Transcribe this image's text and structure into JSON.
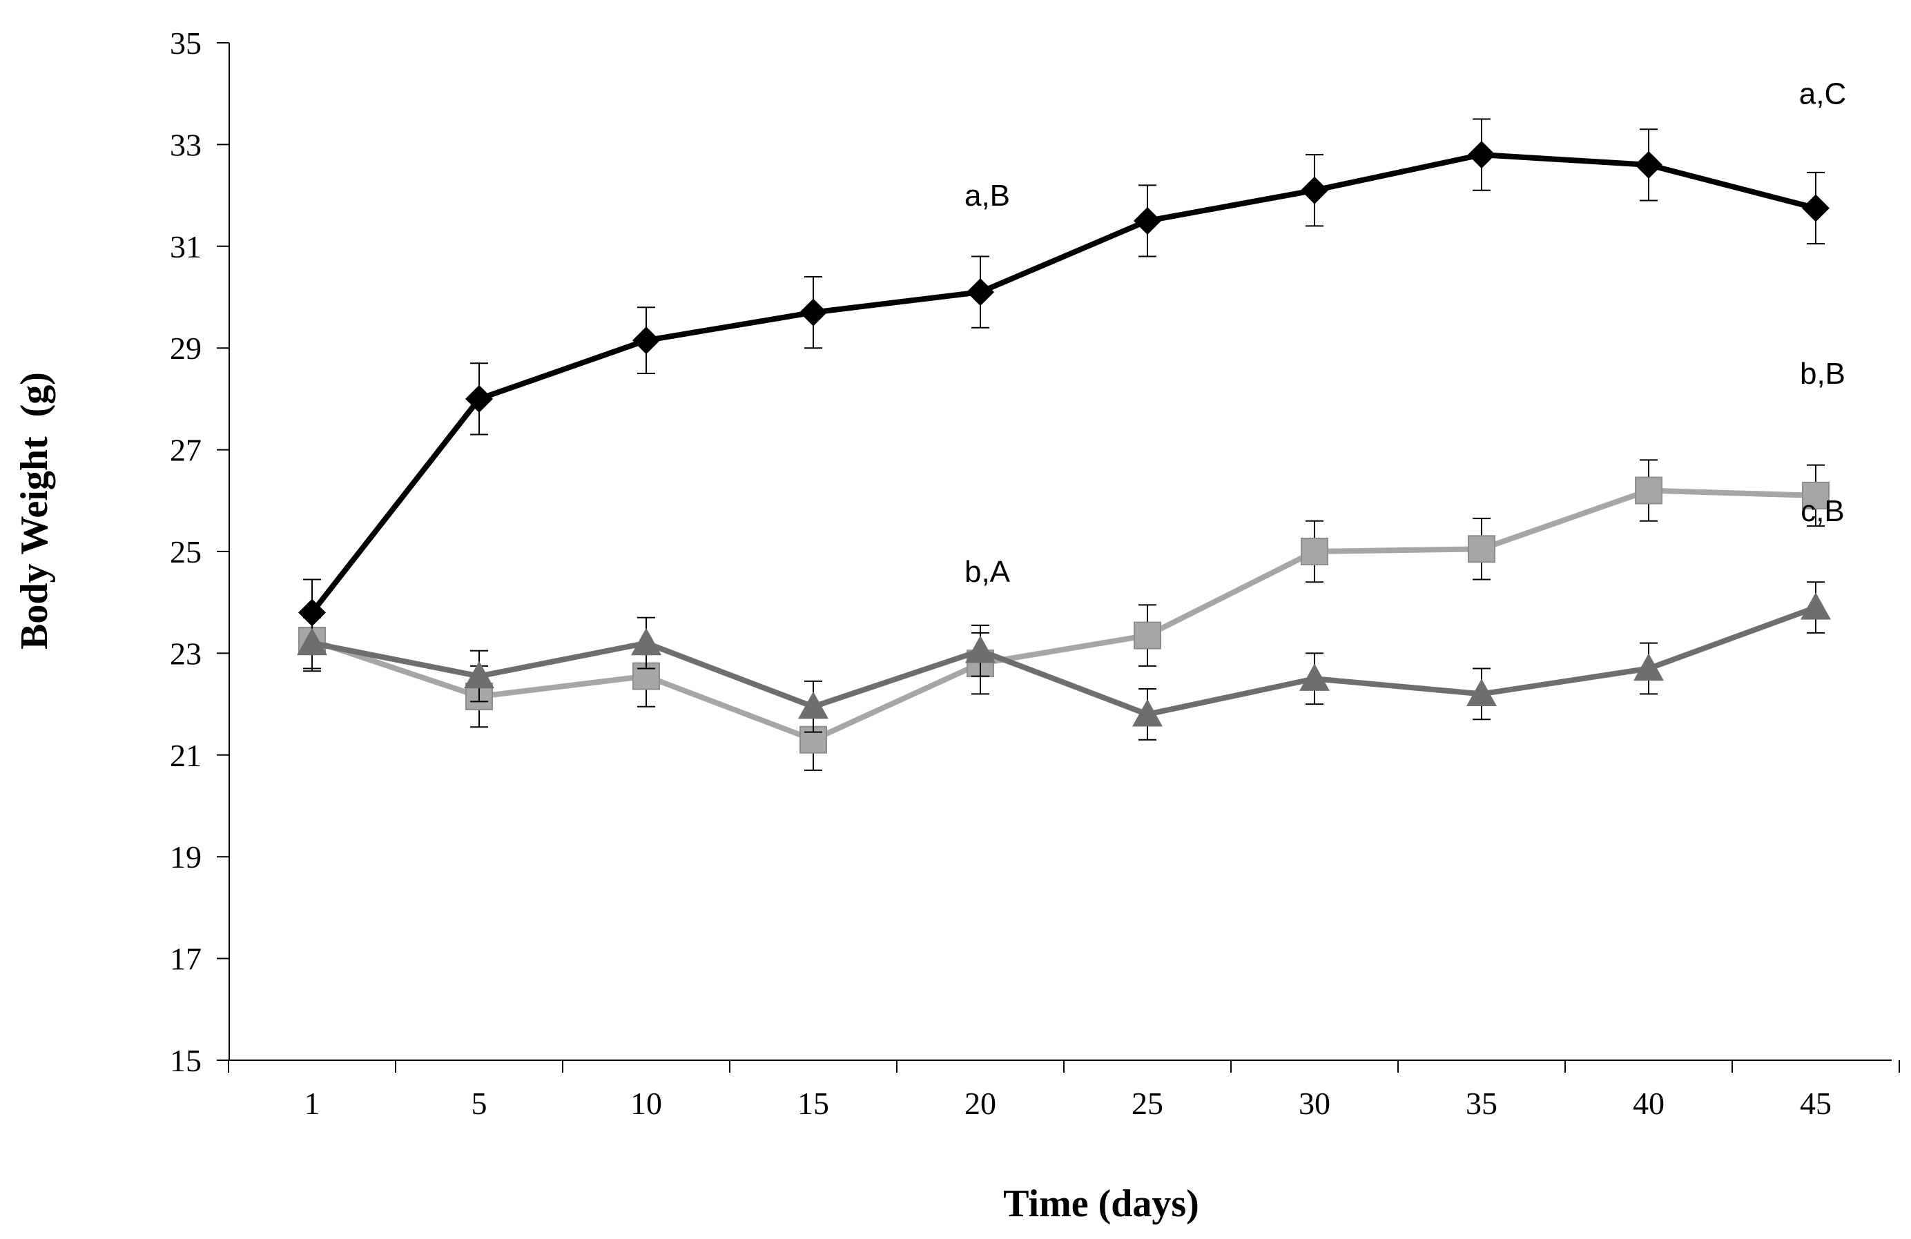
{
  "chart_data": {
    "type": "line",
    "title": "",
    "xlabel": "Time (days)",
    "ylabel": "Body Weight  (g)",
    "categories": [
      "1",
      "5",
      "10",
      "15",
      "20",
      "25",
      "30",
      "35",
      "40",
      "45"
    ],
    "ylim": [
      15,
      35
    ],
    "yticks": [
      "15",
      "17",
      "19",
      "21",
      "23",
      "25",
      "27",
      "29",
      "31",
      "33",
      "35"
    ],
    "grid": false,
    "legend": "none",
    "series": [
      {
        "name": "series-1",
        "color": "#000000",
        "marker": "diamond",
        "values": [
          23.8,
          28.0,
          29.15,
          29.7,
          30.1,
          31.5,
          32.1,
          32.8,
          32.6,
          31.75
        ],
        "errors": [
          0.65,
          0.7,
          0.65,
          0.7,
          0.7,
          0.7,
          0.7,
          0.7,
          0.7,
          0.7
        ]
      },
      {
        "name": "series-2",
        "color": "#a6a6a6",
        "marker": "square",
        "values": [
          23.25,
          22.15,
          22.55,
          21.3,
          22.8,
          23.35,
          25.0,
          25.05,
          26.2,
          26.1
        ],
        "errors": [
          0.6,
          0.6,
          0.6,
          0.6,
          0.6,
          0.6,
          0.6,
          0.6,
          0.6,
          0.6
        ]
      },
      {
        "name": "series-3",
        "color": "#6e6e6e",
        "marker": "triangle",
        "values": [
          23.2,
          22.55,
          23.2,
          21.95,
          23.05,
          21.8,
          22.5,
          22.2,
          22.7,
          23.9
        ],
        "errors": [
          0.5,
          0.5,
          0.5,
          0.5,
          0.5,
          0.5,
          0.5,
          0.5,
          0.5,
          0.5
        ]
      }
    ],
    "annotations": [
      {
        "text": "a,B",
        "x": "20",
        "y": 31.8
      },
      {
        "text": "a,C",
        "x": "45",
        "y": 33.8
      },
      {
        "text": "b,B",
        "x": "45",
        "y": 28.3
      },
      {
        "text": "b,A",
        "x": "20",
        "y": 24.4
      },
      {
        "text": "c,B",
        "x": "45",
        "y": 25.6
      }
    ]
  }
}
